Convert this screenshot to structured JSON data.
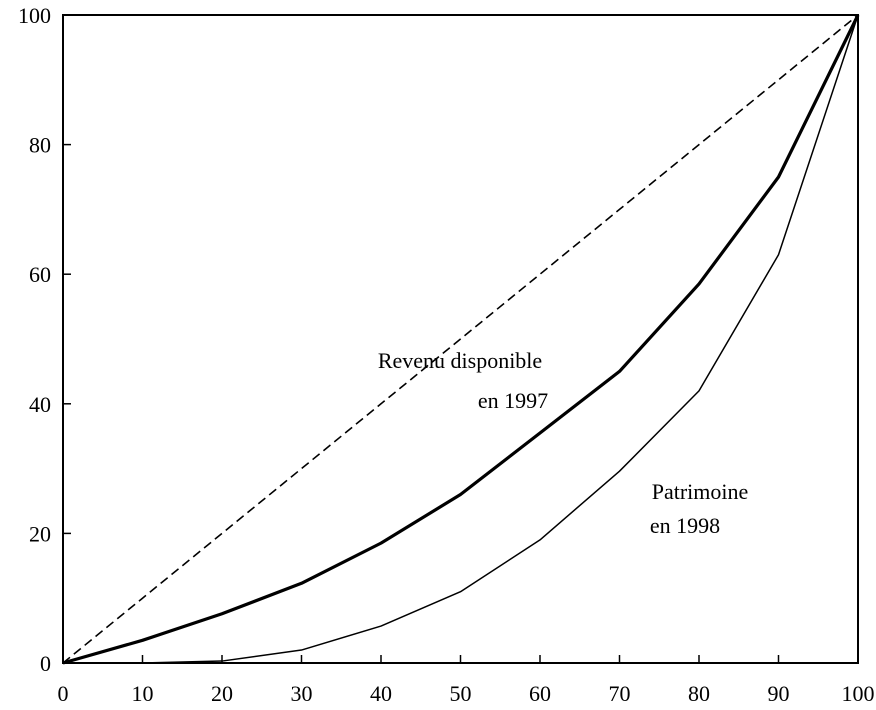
{
  "chart_data": {
    "type": "line",
    "x": [
      0,
      10,
      20,
      30,
      40,
      50,
      60,
      70,
      80,
      90,
      100
    ],
    "series": [
      {
        "color": "#000000",
        "line_style": "dashed",
        "values": [
          0,
          10,
          20,
          30,
          40,
          50,
          60,
          70,
          80,
          90,
          100
        ]
      },
      {
        "color": "#000000",
        "line_style": "thick",
        "values": [
          0,
          3.5,
          7.6,
          12.3,
          18.5,
          26,
          35.5,
          45,
          58.5,
          75,
          100
        ]
      },
      {
        "color": "#000000",
        "line_style": "thin",
        "values": [
          0,
          0,
          0.3,
          2,
          5.7,
          11,
          19,
          29.6,
          42,
          63,
          100
        ]
      }
    ],
    "annotations": [
      "Revenu disponible",
      "en 1997",
      "Patrimoine",
      "en 1998"
    ],
    "xlim": [
      0,
      100
    ],
    "xticks": [
      0,
      10,
      20,
      30,
      40,
      50,
      60,
      70,
      80,
      90,
      100
    ],
    "ylim": [
      0,
      100
    ],
    "yticks": [
      0,
      20,
      40,
      60,
      80,
      100
    ],
    "grid": false
  }
}
